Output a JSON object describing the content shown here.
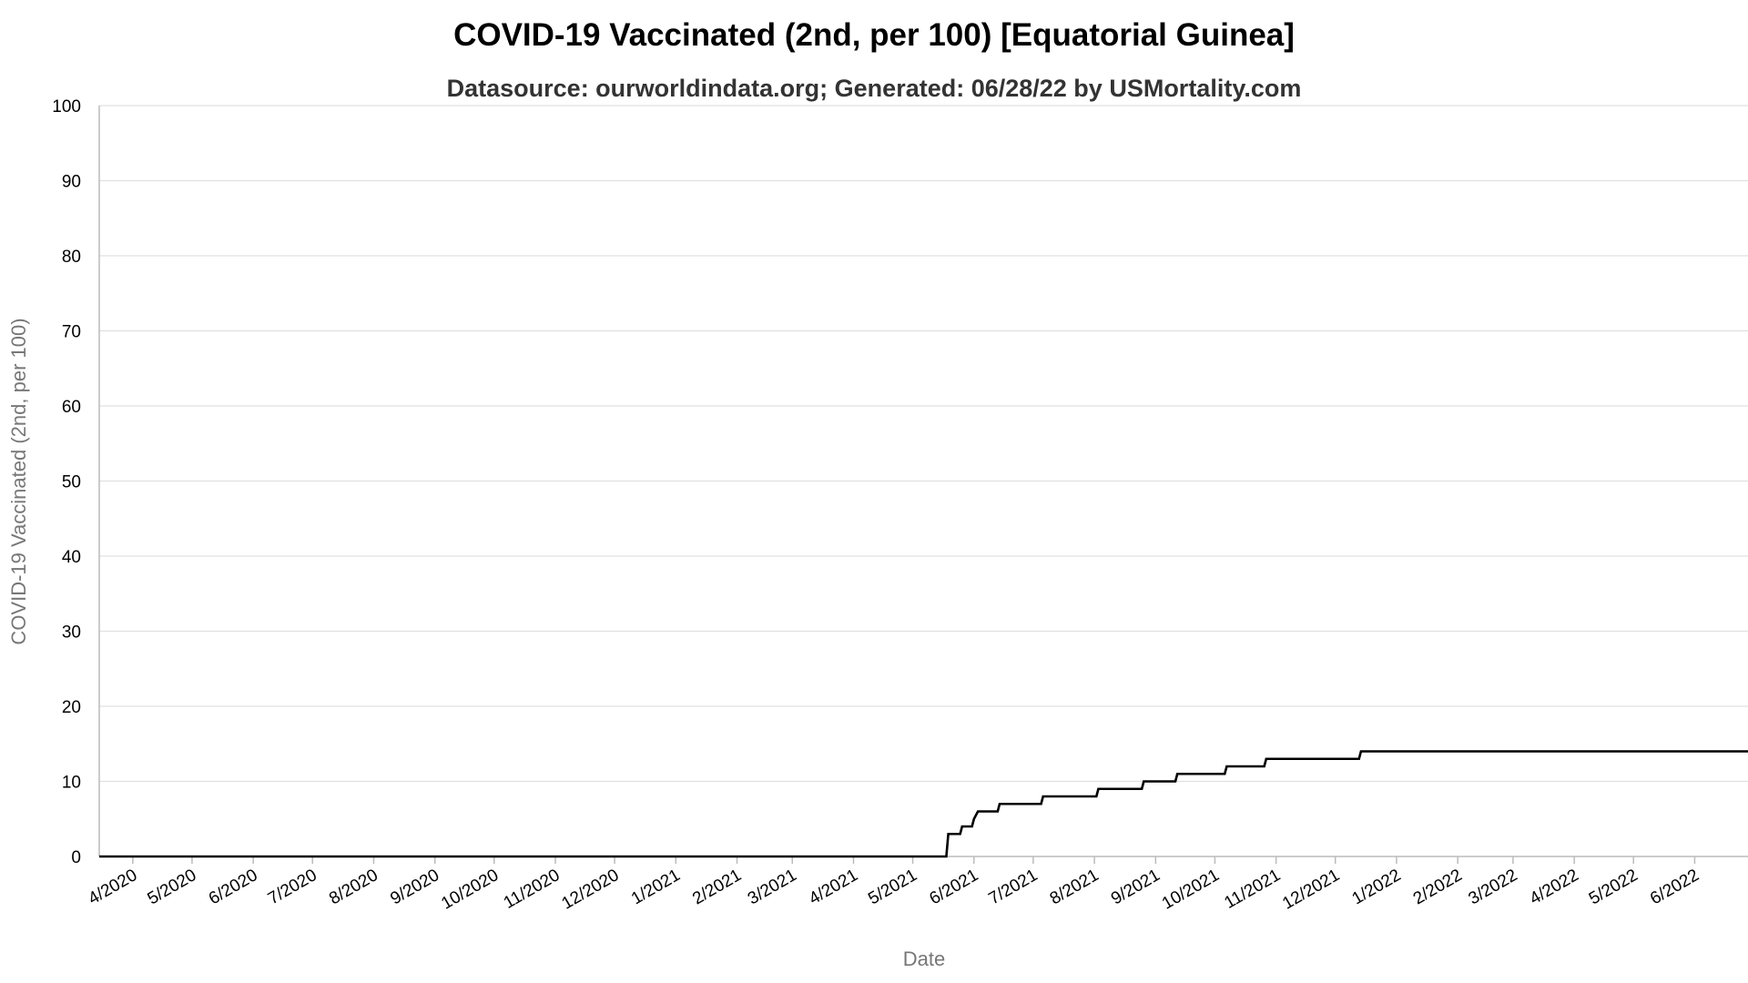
{
  "chart_data": {
    "type": "line",
    "title": "COVID-19 Vaccinated (2nd, per 100) [Equatorial Guinea]",
    "subtitle": "Datasource: ourworldindata.org; Generated: 06/28/22 by USMortality.com",
    "xlabel": "Date",
    "ylabel": "COVID-19 Vaccinated (2nd, per 100)",
    "x_range": [
      "2020-03-15",
      "2022-06-28"
    ],
    "ylim": [
      0,
      100
    ],
    "y_ticks": [
      0,
      10,
      20,
      30,
      40,
      50,
      60,
      70,
      80,
      90,
      100
    ],
    "x_ticks": [
      {
        "date": "2020-04-01",
        "label": "4/2020"
      },
      {
        "date": "2020-05-01",
        "label": "5/2020"
      },
      {
        "date": "2020-06-01",
        "label": "6/2020"
      },
      {
        "date": "2020-07-01",
        "label": "7/2020"
      },
      {
        "date": "2020-08-01",
        "label": "8/2020"
      },
      {
        "date": "2020-09-01",
        "label": "9/2020"
      },
      {
        "date": "2020-10-01",
        "label": "10/2020"
      },
      {
        "date": "2020-11-01",
        "label": "11/2020"
      },
      {
        "date": "2020-12-01",
        "label": "12/2020"
      },
      {
        "date": "2021-01-01",
        "label": "1/2021"
      },
      {
        "date": "2021-02-01",
        "label": "2/2021"
      },
      {
        "date": "2021-03-01",
        "label": "3/2021"
      },
      {
        "date": "2021-04-01",
        "label": "4/2021"
      },
      {
        "date": "2021-05-01",
        "label": "5/2021"
      },
      {
        "date": "2021-06-01",
        "label": "6/2021"
      },
      {
        "date": "2021-07-01",
        "label": "7/2021"
      },
      {
        "date": "2021-08-01",
        "label": "8/2021"
      },
      {
        "date": "2021-09-01",
        "label": "9/2021"
      },
      {
        "date": "2021-10-01",
        "label": "10/2021"
      },
      {
        "date": "2021-11-01",
        "label": "11/2021"
      },
      {
        "date": "2021-12-01",
        "label": "12/2021"
      },
      {
        "date": "2022-01-01",
        "label": "1/2022"
      },
      {
        "date": "2022-02-01",
        "label": "2/2022"
      },
      {
        "date": "2022-03-01",
        "label": "3/2022"
      },
      {
        "date": "2022-04-01",
        "label": "4/2022"
      },
      {
        "date": "2022-05-01",
        "label": "5/2022"
      },
      {
        "date": "2022-06-01",
        "label": "6/2022"
      }
    ],
    "grid": true,
    "legend": "none",
    "line_color": "#000000",
    "series": [
      {
        "points": [
          {
            "x": "2020-03-15",
            "y": 0
          },
          {
            "x": "2021-05-18",
            "y": 0
          },
          {
            "x": "2021-05-19",
            "y": 3
          },
          {
            "x": "2021-05-25",
            "y": 3
          },
          {
            "x": "2021-05-26",
            "y": 4
          },
          {
            "x": "2021-05-31",
            "y": 4
          },
          {
            "x": "2021-06-01",
            "y": 5
          },
          {
            "x": "2021-06-03",
            "y": 6
          },
          {
            "x": "2021-06-13",
            "y": 6
          },
          {
            "x": "2021-06-14",
            "y": 7
          },
          {
            "x": "2021-07-05",
            "y": 7
          },
          {
            "x": "2021-07-06",
            "y": 8
          },
          {
            "x": "2021-08-02",
            "y": 8
          },
          {
            "x": "2021-08-03",
            "y": 9
          },
          {
            "x": "2021-08-25",
            "y": 9
          },
          {
            "x": "2021-08-26",
            "y": 10
          },
          {
            "x": "2021-09-11",
            "y": 10
          },
          {
            "x": "2021-09-12",
            "y": 11
          },
          {
            "x": "2021-10-06",
            "y": 11
          },
          {
            "x": "2021-10-07",
            "y": 12
          },
          {
            "x": "2021-10-26",
            "y": 12
          },
          {
            "x": "2021-10-27",
            "y": 13
          },
          {
            "x": "2021-12-13",
            "y": 13
          },
          {
            "x": "2021-12-14",
            "y": 14
          },
          {
            "x": "2022-06-28",
            "y": 14
          }
        ]
      }
    ]
  }
}
